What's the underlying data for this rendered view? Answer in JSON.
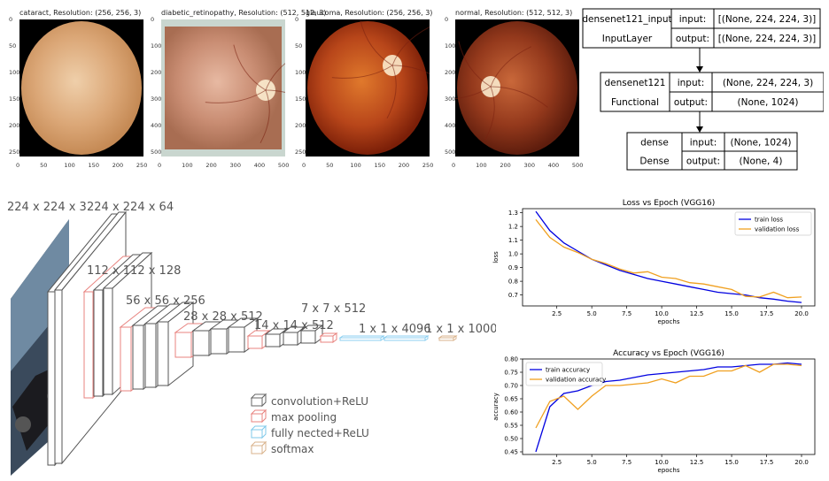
{
  "fundus": [
    {
      "label": "cataract",
      "title": "cataract, Resolution: (256, 256, 3)",
      "yticks": [
        "0",
        "50",
        "100",
        "150",
        "200",
        "250"
      ],
      "xticks": [
        "0",
        "50",
        "100",
        "150",
        "200",
        "250"
      ],
      "colors": {
        "outer": "#c58a55",
        "inner": "#efcfaa",
        "mid": "#dba777"
      }
    },
    {
      "label": "diabetic_retinopathy",
      "title": "diabetic_retinopathy, Resolution: (512, 512, 3)",
      "yticks": [
        "0",
        "100",
        "200",
        "300",
        "400",
        "500"
      ],
      "xticks": [
        "0",
        "100",
        "200",
        "300",
        "400",
        "500"
      ],
      "colors": {
        "outer": "#a86d52",
        "inner": "#e7b9a2",
        "mid": "#c98d73"
      }
    },
    {
      "label": "glaucoma",
      "title": "glaucoma, Resolution: (256, 256, 3)",
      "yticks": [
        "0",
        "50",
        "100",
        "150",
        "200",
        "250"
      ],
      "xticks": [
        "0",
        "50",
        "100",
        "150",
        "200",
        "250"
      ],
      "colors": {
        "outer": "#7b1f08",
        "inner": "#e0792c",
        "mid": "#b8461a"
      }
    },
    {
      "label": "normal",
      "title": "normal, Resolution: (512, 512, 3)",
      "yticks": [
        "0",
        "100",
        "200",
        "300",
        "400",
        "500"
      ],
      "xticks": [
        "0",
        "100",
        "200",
        "300",
        "400",
        "500"
      ],
      "colors": {
        "outer": "#5e1d0d",
        "inner": "#c9683a",
        "mid": "#94391c"
      }
    }
  ],
  "model": [
    {
      "name": "densenet121_input",
      "type": "InputLayer",
      "input": "[(None, 224, 224, 3)]",
      "output": "[(None, 224, 224, 3)]",
      "in_label": "input:",
      "out_label": "output:"
    },
    {
      "name": "densenet121",
      "type": "Functional",
      "input": "(None, 224, 224, 3)",
      "output": "(None, 1024)",
      "in_label": "input:",
      "out_label": "output:"
    },
    {
      "name": "dense",
      "type": "Dense",
      "input": "(None, 1024)",
      "output": "(None, 4)",
      "in_label": "input:",
      "out_label": "output:"
    }
  ],
  "vgg": {
    "labels": [
      "224 x 224 x 3",
      "224 x 224 x 64",
      "112 x 112 x 128",
      "56 x 56 x 256",
      "28 x 28 x 512",
      "14 x 14 x 512",
      "7 x 7 x 512",
      "1 x 1 x 4096",
      "1 x 1 x 1000"
    ],
    "legend": [
      {
        "label": "convolution+ReLU",
        "color": "#666666"
      },
      {
        "label": "max pooling",
        "color": "#e8837f"
      },
      {
        "label": "fully nected+ReLU",
        "color": "#7fc9ea"
      },
      {
        "label": "softmax",
        "color": "#d9b38c"
      }
    ]
  },
  "chart_data": [
    {
      "type": "line",
      "title": "Loss vs Epoch (VGG16)",
      "xlabel": "epochs",
      "ylabel": "loss",
      "xlim": [
        0.05,
        20.95
      ],
      "ylim": [
        0.62,
        1.33
      ],
      "xticks": [
        2.5,
        5.0,
        7.5,
        10.0,
        12.5,
        15.0,
        17.5,
        20.0
      ],
      "xtick_labels": [
        "2.5",
        "5.0",
        "7.5",
        "10.0",
        "12.5",
        "15.0",
        "17.5",
        "20.0"
      ],
      "yticks": [
        0.7,
        0.8,
        0.9,
        1.0,
        1.1,
        1.2,
        1.3
      ],
      "ytick_labels": [
        "0.7",
        "0.8",
        "0.9",
        "1.0",
        "1.1",
        "1.2",
        "1.3"
      ],
      "legend_position": "upper right",
      "x": [
        1,
        2,
        3,
        4,
        5,
        6,
        7,
        8,
        9,
        10,
        11,
        12,
        13,
        14,
        15,
        16,
        17,
        18,
        19,
        20
      ],
      "series": [
        {
          "name": "train loss",
          "color": "#0000e0",
          "values": [
            1.31,
            1.17,
            1.08,
            1.02,
            0.96,
            0.92,
            0.88,
            0.85,
            0.82,
            0.8,
            0.78,
            0.76,
            0.74,
            0.72,
            0.71,
            0.7,
            0.68,
            0.67,
            0.655,
            0.645
          ]
        },
        {
          "name": "validation loss",
          "color": "#f0a020",
          "values": [
            1.25,
            1.12,
            1.05,
            1.01,
            0.96,
            0.93,
            0.89,
            0.86,
            0.87,
            0.83,
            0.82,
            0.79,
            0.78,
            0.76,
            0.74,
            0.69,
            0.685,
            0.72,
            0.68,
            0.685
          ]
        }
      ]
    },
    {
      "type": "line",
      "title": "Accuracy vs Epoch (VGG16)",
      "xlabel": "epochs",
      "ylabel": "accuracy",
      "xlim": [
        0.05,
        20.95
      ],
      "ylim": [
        0.44,
        0.8
      ],
      "xticks": [
        2.5,
        5.0,
        7.5,
        10.0,
        12.5,
        15.0,
        17.5,
        20.0
      ],
      "xtick_labels": [
        "2.5",
        "5.0",
        "7.5",
        "10.0",
        "12.5",
        "15.0",
        "17.5",
        "20.0"
      ],
      "yticks": [
        0.45,
        0.5,
        0.55,
        0.6,
        0.65,
        0.7,
        0.75,
        0.8
      ],
      "ytick_labels": [
        "0.45",
        "0.50",
        "0.55",
        "0.60",
        "0.65",
        "0.70",
        "0.75",
        "0.80"
      ],
      "legend_position": "upper left",
      "x": [
        1,
        2,
        3,
        4,
        5,
        6,
        7,
        8,
        9,
        10,
        11,
        12,
        13,
        14,
        15,
        16,
        17,
        18,
        19,
        20
      ],
      "series": [
        {
          "name": "train accuracy",
          "color": "#0000e0",
          "values": [
            0.45,
            0.62,
            0.67,
            0.68,
            0.7,
            0.715,
            0.72,
            0.73,
            0.74,
            0.745,
            0.75,
            0.755,
            0.76,
            0.77,
            0.77,
            0.775,
            0.78,
            0.78,
            0.785,
            0.78
          ]
        },
        {
          "name": "validation accuracy",
          "color": "#f0a020",
          "values": [
            0.54,
            0.64,
            0.66,
            0.61,
            0.66,
            0.7,
            0.7,
            0.705,
            0.71,
            0.725,
            0.71,
            0.735,
            0.735,
            0.755,
            0.755,
            0.775,
            0.75,
            0.78,
            0.78,
            0.775
          ]
        }
      ]
    }
  ]
}
